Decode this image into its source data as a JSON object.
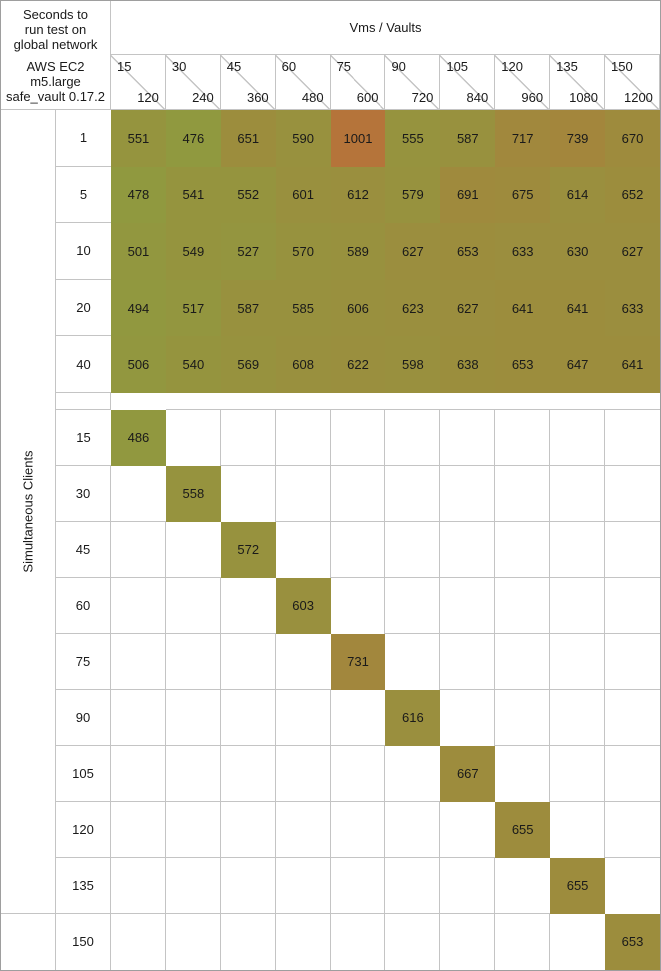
{
  "header": {
    "title_lines": [
      "Seconds to",
      "run test on",
      "global network"
    ],
    "subtitle_lines": [
      "AWS EC2",
      "m5.large",
      "safe_vault 0.17.2"
    ]
  },
  "chart_data": {
    "type": "heatmap",
    "title": "Seconds to run test on global network",
    "subtitle": "AWS EC2 m5.large safe_vault 0.17.2",
    "columns_axis_label": "Vms / Vaults",
    "rows_axis_label": "Simultaneous Clients",
    "columns": [
      {
        "vms": "15",
        "vaults": "120"
      },
      {
        "vms": "30",
        "vaults": "240"
      },
      {
        "vms": "45",
        "vaults": "360"
      },
      {
        "vms": "60",
        "vaults": "480"
      },
      {
        "vms": "75",
        "vaults": "600"
      },
      {
        "vms": "90",
        "vaults": "720"
      },
      {
        "vms": "105",
        "vaults": "840"
      },
      {
        "vms": "120",
        "vaults": "960"
      },
      {
        "vms": "135",
        "vaults": "1080"
      },
      {
        "vms": "150",
        "vaults": "1200"
      }
    ],
    "block_rows": [
      {
        "label": "1",
        "values": [
          551,
          476,
          651,
          590,
          1001,
          555,
          587,
          717,
          739,
          670
        ]
      },
      {
        "label": "5",
        "values": [
          478,
          541,
          552,
          601,
          612,
          579,
          691,
          675,
          614,
          652
        ]
      },
      {
        "label": "10",
        "values": [
          501,
          549,
          527,
          570,
          589,
          627,
          653,
          633,
          630,
          627
        ]
      },
      {
        "label": "20",
        "values": [
          494,
          517,
          587,
          585,
          606,
          623,
          627,
          641,
          641,
          633
        ]
      },
      {
        "label": "40",
        "values": [
          506,
          540,
          569,
          608,
          622,
          598,
          638,
          653,
          647,
          641
        ]
      }
    ],
    "diagonal_rows": [
      {
        "label": "15",
        "col_index": 0,
        "value": 486
      },
      {
        "label": "30",
        "col_index": 1,
        "value": 558
      },
      {
        "label": "45",
        "col_index": 2,
        "value": 572
      },
      {
        "label": "60",
        "col_index": 3,
        "value": 603
      },
      {
        "label": "75",
        "col_index": 4,
        "value": 731
      },
      {
        "label": "90",
        "col_index": 5,
        "value": 616
      },
      {
        "label": "105",
        "col_index": 6,
        "value": 667
      },
      {
        "label": "120",
        "col_index": 7,
        "value": 655
      },
      {
        "label": "135",
        "col_index": 8,
        "value": 655
      },
      {
        "label": "150",
        "col_index": 9,
        "value": 653
      }
    ],
    "color_scale": {
      "min_value": 476,
      "max_value": 1001,
      "min_color": "#90993F",
      "max_color": "#B5743A"
    },
    "grid_color": "#C4C4C4",
    "text_color": "#1A1A1A"
  }
}
